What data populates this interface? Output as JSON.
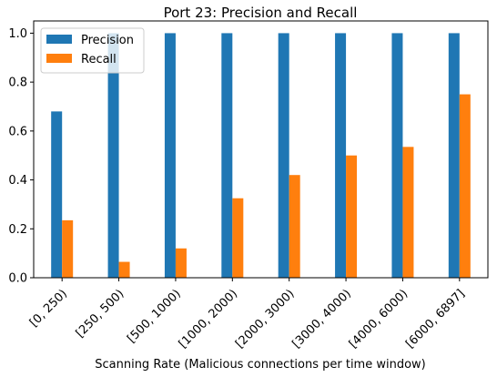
{
  "chart_data": {
    "type": "bar",
    "title": "Port 23: Precision and Recall",
    "xlabel": "Scanning Rate (Malicious connections per time window)",
    "ylabel": "",
    "ylim": [
      0,
      1.05
    ],
    "yticks": [
      "0.0",
      "0.2",
      "0.4",
      "0.6",
      "0.8",
      "1.0"
    ],
    "categories": [
      "[0, 250)",
      "[250, 500)",
      "[500, 1000)",
      "[1000, 2000)",
      "[2000, 3000)",
      "[3000, 4000)",
      "[4000, 6000)",
      "[6000, 6897]"
    ],
    "series": [
      {
        "name": "Precision",
        "color": "#1f77b4",
        "values": [
          0.68,
          1.0,
          1.0,
          1.0,
          1.0,
          1.0,
          1.0,
          1.0
        ]
      },
      {
        "name": "Recall",
        "color": "#ff7f0e",
        "values": [
          0.235,
          0.065,
          0.12,
          0.325,
          0.42,
          0.5,
          0.535,
          0.75
        ]
      }
    ],
    "legend": "top-left",
    "grid": false
  }
}
